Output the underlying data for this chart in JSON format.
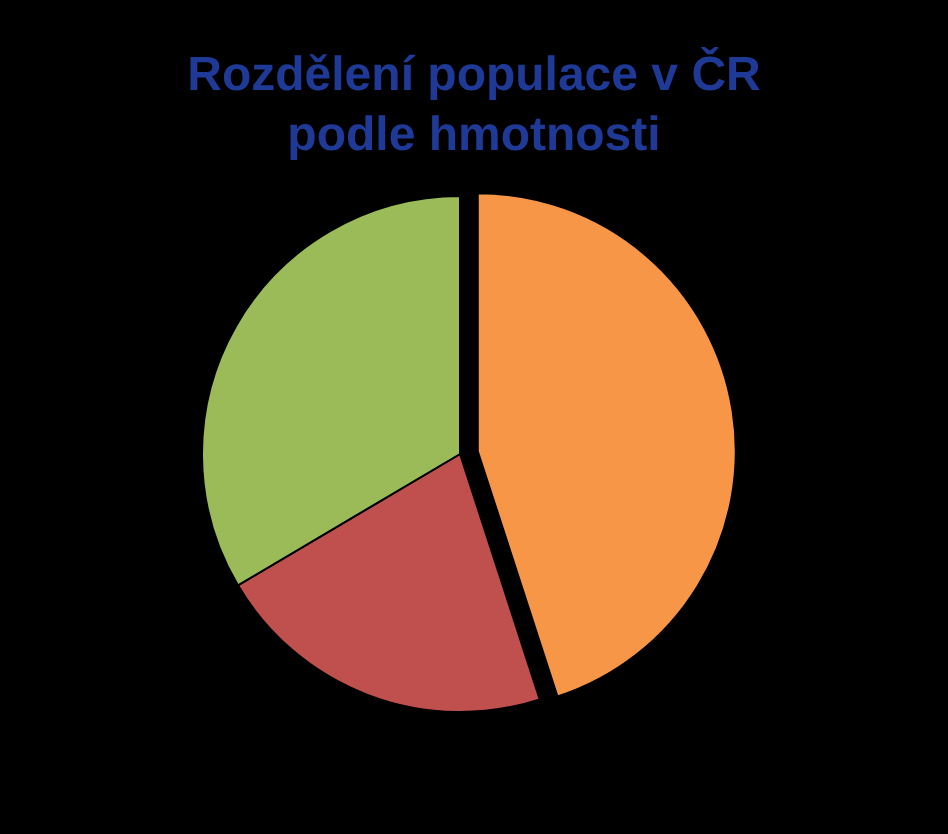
{
  "chart_data": {
    "type": "pie",
    "title": "Rozdělení populace v ČR\npodle hmotnosti",
    "categories": [
      null,
      null,
      null
    ],
    "values": [
      45,
      21.5,
      33.5
    ],
    "colors": [
      "#f79646",
      "#c0504d",
      "#9bbb59"
    ]
  }
}
